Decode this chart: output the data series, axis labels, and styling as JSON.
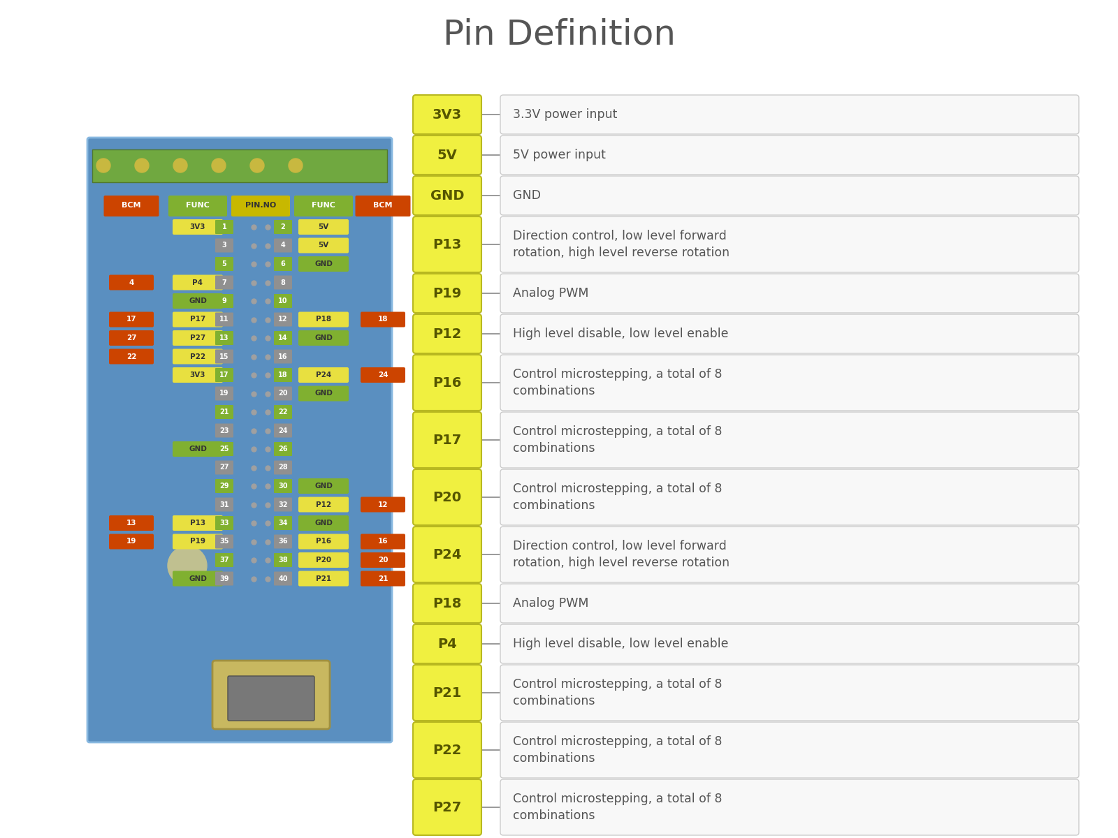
{
  "title": "Pin Definition",
  "title_fontsize": 36,
  "title_color": "#555555",
  "background_color": "#ffffff",
  "pin_entries": [
    {
      "label": "3V3",
      "description": "3.3V power input"
    },
    {
      "label": "5V",
      "description": "5V power input"
    },
    {
      "label": "GND",
      "description": "GND"
    },
    {
      "label": "P13",
      "description": "Direction control, low level forward\nrotation, high level reverse rotation"
    },
    {
      "label": "P19",
      "description": "Analog PWM"
    },
    {
      "label": "P12",
      "description": "High level disable, low level enable"
    },
    {
      "label": "P16",
      "description": "Control microstepping, a total of 8\ncombinations"
    },
    {
      "label": "P17",
      "description": "Control microstepping, a total of 8\ncombinations"
    },
    {
      "label": "P20",
      "description": "Control microstepping, a total of 8\ncombinations"
    },
    {
      "label": "P24",
      "description": "Direction control, low level forward\nrotation, high level reverse rotation"
    },
    {
      "label": "P18",
      "description": "Analog PWM"
    },
    {
      "label": "P4",
      "description": "High level disable, low level enable"
    },
    {
      "label": "P21",
      "description": "Control microstepping, a total of 8\ncombinations"
    },
    {
      "label": "P22",
      "description": "Control microstepping, a total of 8\ncombinations"
    },
    {
      "label": "P27",
      "description": "Control microstepping, a total of 8\ncombinations"
    }
  ],
  "label_box_color": "#f0f040",
  "label_box_edge_color": "#b8b820",
  "desc_box_color": "#f8f8f8",
  "desc_box_edge_color": "#cccccc",
  "connector_color": "#888888",
  "two_line_labels": [
    "P13",
    "P16",
    "P17",
    "P20",
    "P24",
    "P21",
    "P22",
    "P27"
  ],
  "board_pin_rows": [
    [
      null,
      "3V3",
      "1",
      "2",
      "5V",
      null
    ],
    [
      null,
      null,
      "3",
      "4",
      "5V",
      null
    ],
    [
      null,
      null,
      "5",
      "6",
      "GND",
      null
    ],
    [
      "4",
      "P4",
      "7",
      "8",
      null,
      null
    ],
    [
      null,
      "GND",
      "9",
      "10",
      null,
      null
    ],
    [
      "17",
      "P17",
      "11",
      "12",
      "P18",
      "18"
    ],
    [
      "27",
      "P27",
      "13",
      "14",
      "GND",
      null
    ],
    [
      "22",
      "P22",
      "15",
      "16",
      null,
      null
    ],
    [
      null,
      "3V3",
      "17",
      "18",
      "P24",
      "24"
    ],
    [
      null,
      null,
      "19",
      "20",
      "GND",
      null
    ],
    [
      null,
      null,
      "21",
      "22",
      null,
      null
    ],
    [
      null,
      null,
      "23",
      "24",
      null,
      null
    ],
    [
      null,
      "GND",
      "25",
      "26",
      null,
      null
    ],
    [
      null,
      null,
      "27",
      "28",
      null,
      null
    ],
    [
      null,
      null,
      "29",
      "30",
      "GND",
      null
    ],
    [
      null,
      null,
      "31",
      "32",
      "P12",
      "12"
    ],
    [
      "13",
      "P13",
      "33",
      "34",
      "GND",
      null
    ],
    [
      "19",
      "P19",
      "35",
      "36",
      "P16",
      "16"
    ],
    [
      null,
      null,
      "37",
      "38",
      "P20",
      "20"
    ],
    [
      null,
      "GND",
      "39",
      "40",
      "P21",
      "21"
    ]
  ],
  "col_header": [
    "BCM",
    "FUNC",
    "PIN.NO",
    "FUNC",
    "BCM"
  ],
  "col_header_colors": [
    "#cc4400",
    "#80b030",
    "#c8b800",
    "#80b030",
    "#cc4400"
  ],
  "col_header_text_colors": [
    "white",
    "white",
    "#333333",
    "white",
    "white"
  ]
}
